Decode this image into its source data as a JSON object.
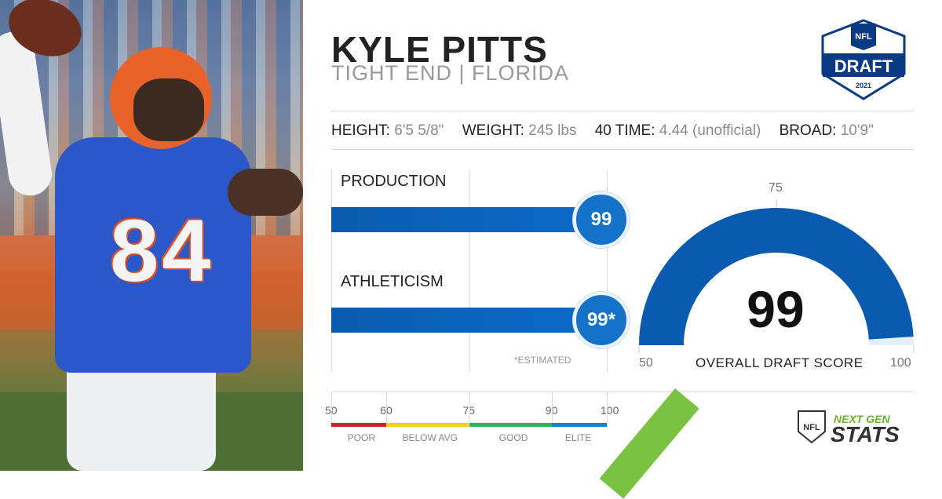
{
  "player": {
    "name": "KYLE PITTS",
    "position_line": "TIGHT END | FLORIDA",
    "jersey_number": "84"
  },
  "logo": {
    "text_top": "NFL",
    "text_main": "DRAFT",
    "text_year": "2021",
    "color": "#0a3a84"
  },
  "stats": {
    "height_label": "HEIGHT:",
    "height_value": "6'5 5/8\"",
    "weight_label": "WEIGHT:",
    "weight_value": "245 lbs",
    "forty_label": "40 TIME:",
    "forty_value": "4.44 (unofficial)",
    "broad_label": "BROAD:",
    "broad_value": "10'9\""
  },
  "chart_data": [
    {
      "type": "bar",
      "categories": [
        "PRODUCTION",
        "ATHLETICISM"
      ],
      "values": [
        99,
        99
      ],
      "value_labels": [
        "99",
        "99*"
      ],
      "xlim": [
        50,
        100
      ],
      "footnote": "*ESTIMATED",
      "bar_color": "#0c63bd"
    },
    {
      "type": "gauge",
      "value": 99,
      "range": [
        50,
        100
      ],
      "min_label": "50",
      "mid_label": "75",
      "max_label": "100",
      "title": "OVERALL DRAFT SCORE",
      "color": "#0a5bb0"
    }
  ],
  "scale": {
    "ticks": [
      "50",
      "60",
      "75",
      "90",
      "100"
    ],
    "bands": [
      {
        "label": "POOR",
        "from": 50,
        "to": 60,
        "color": "#c9232d"
      },
      {
        "label": "BELOW AVG",
        "from": 60,
        "to": 75,
        "color": "#f2d21a"
      },
      {
        "label": "GOOD",
        "from": 75,
        "to": 90,
        "color": "#2cb25d"
      },
      {
        "label": "ELITE",
        "from": 90,
        "to": 100,
        "color": "#1a80c8"
      }
    ]
  },
  "brand": {
    "line1": "NEXT GEN",
    "line2": "STATS",
    "shield": "NFL",
    "accent": "#7bc242"
  }
}
